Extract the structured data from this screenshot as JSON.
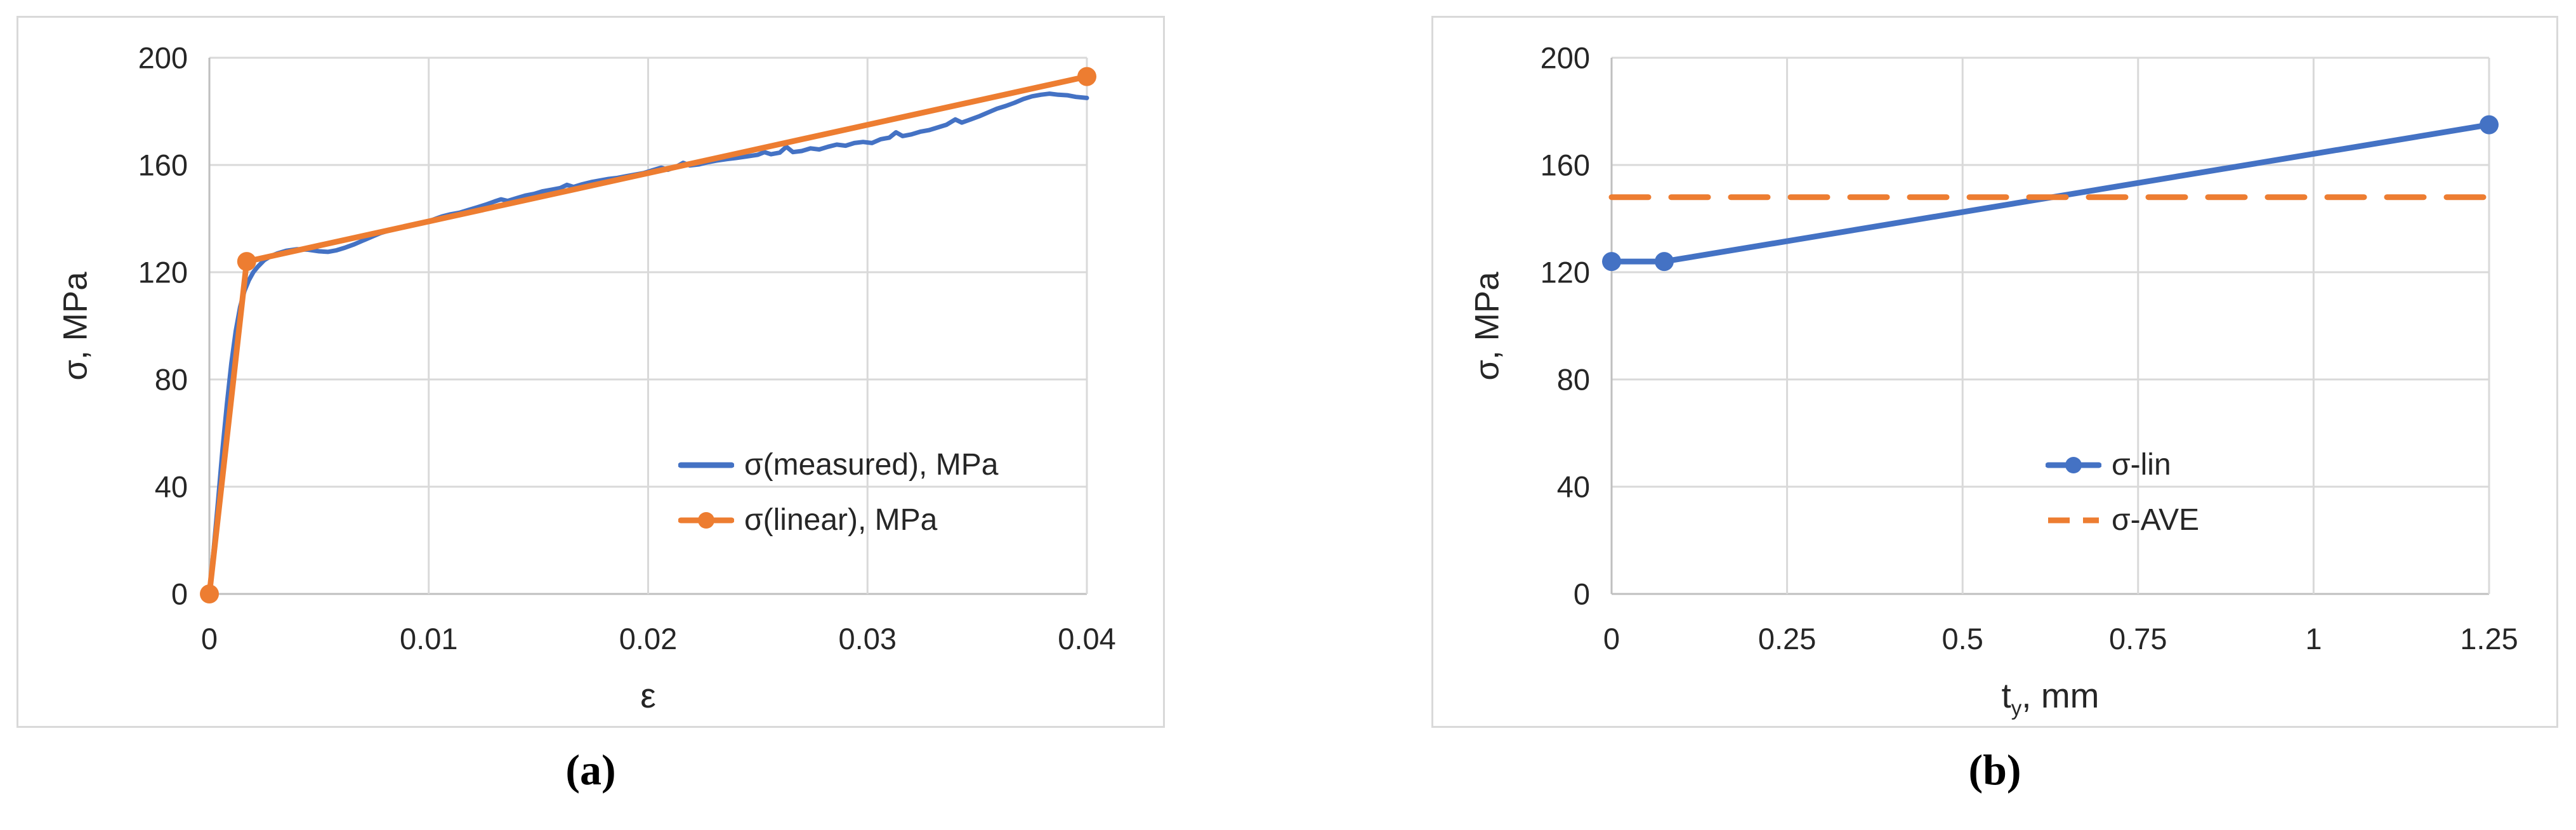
{
  "colors": {
    "blue": "#4472C4",
    "orange": "#ED7D31",
    "gridline": "#D9D9D9",
    "axis_line": "#BFBFBF",
    "chart_border": "#D9D9D9",
    "text": "#262626"
  },
  "chart_data": [
    {
      "type": "line",
      "caption": "(a)",
      "ylabel": "σ, MPa",
      "xlabel_main": "ε",
      "xlabel_sub": "",
      "xlabel_rest": "",
      "xlim": [
        0,
        0.04
      ],
      "ylim": [
        0,
        200
      ],
      "grid": true,
      "legend_position": "inside-lower-right",
      "y_ticks": [
        "200",
        "160",
        "120",
        "80",
        "40",
        "0"
      ],
      "x_ticks": [
        "0",
        "0.01",
        "0.02",
        "0.03",
        "0.04"
      ],
      "legend": [
        {
          "label": "σ(measured), MPa",
          "color_key": "blue",
          "dashed": false,
          "marker": false
        },
        {
          "label": "σ(linear), MPa",
          "color_key": "orange",
          "dashed": false,
          "marker": true
        }
      ],
      "series": [
        {
          "name": "σ(measured), MPa",
          "color_key": "blue",
          "dashed": false,
          "markers": false,
          "weight": 7,
          "points": [
            [
              0,
              0
            ],
            [
              0.0002,
              17
            ],
            [
              0.0004,
              35
            ],
            [
              0.0006,
              54
            ],
            [
              0.0008,
              71
            ],
            [
              0.001,
              86
            ],
            [
              0.0012,
              98
            ],
            [
              0.0014,
              107
            ],
            [
              0.0016,
              113
            ],
            [
              0.0018,
              117
            ],
            [
              0.002,
              120
            ],
            [
              0.0022,
              122
            ],
            [
              0.0025,
              124.5
            ],
            [
              0.0028,
              126
            ],
            [
              0.0031,
              127
            ],
            [
              0.0035,
              128
            ],
            [
              0.004,
              128.6
            ],
            [
              0.0045,
              128.4
            ],
            [
              0.005,
              127.8
            ],
            [
              0.0054,
              127.6
            ],
            [
              0.0058,
              128.2
            ],
            [
              0.0062,
              129.2
            ],
            [
              0.0066,
              130.4
            ],
            [
              0.007,
              131.8
            ],
            [
              0.0074,
              133.2
            ],
            [
              0.0078,
              134.6
            ],
            [
              0.0082,
              135.6
            ],
            [
              0.0086,
              136.4
            ],
            [
              0.009,
              137.2
            ],
            [
              0.0094,
              137.8
            ],
            [
              0.0098,
              138.6
            ],
            [
              0.0102,
              139.6
            ],
            [
              0.0106,
              140.8
            ],
            [
              0.011,
              141.6
            ],
            [
              0.0114,
              142.2
            ],
            [
              0.0118,
              143.2
            ],
            [
              0.0122,
              144.2
            ],
            [
              0.0126,
              145.2
            ],
            [
              0.013,
              146.4
            ],
            [
              0.0133,
              147.2
            ],
            [
              0.0136,
              146.6
            ],
            [
              0.014,
              147.6
            ],
            [
              0.0144,
              148.6
            ],
            [
              0.0148,
              149.2
            ],
            [
              0.0152,
              150.2
            ],
            [
              0.0156,
              150.8
            ],
            [
              0.016,
              151.4
            ],
            [
              0.0163,
              152.6
            ],
            [
              0.0166,
              151.8
            ],
            [
              0.017,
              152.8
            ],
            [
              0.0174,
              153.6
            ],
            [
              0.0178,
              154.2
            ],
            [
              0.0182,
              154.8
            ],
            [
              0.0186,
              155.2
            ],
            [
              0.019,
              155.8
            ],
            [
              0.0194,
              156.4
            ],
            [
              0.0198,
              157
            ],
            [
              0.0202,
              158
            ],
            [
              0.0206,
              159
            ],
            [
              0.0209,
              158.2
            ],
            [
              0.0213,
              159.4
            ],
            [
              0.0216,
              160.8
            ],
            [
              0.0219,
              159.8
            ],
            [
              0.0223,
              160.2
            ],
            [
              0.0227,
              161
            ],
            [
              0.0231,
              161.6
            ],
            [
              0.0236,
              162.2
            ],
            [
              0.024,
              162.6
            ],
            [
              0.0245,
              163.2
            ],
            [
              0.025,
              163.8
            ],
            [
              0.0253,
              164.8
            ],
            [
              0.0256,
              164
            ],
            [
              0.026,
              164.6
            ],
            [
              0.0263,
              166.8
            ],
            [
              0.0266,
              164.8
            ],
            [
              0.027,
              165.2
            ],
            [
              0.0274,
              166.2
            ],
            [
              0.0278,
              165.8
            ],
            [
              0.0282,
              166.8
            ],
            [
              0.0286,
              167.6
            ],
            [
              0.029,
              167.2
            ],
            [
              0.0294,
              168.2
            ],
            [
              0.0298,
              168.6
            ],
            [
              0.0302,
              168.2
            ],
            [
              0.0306,
              169.6
            ],
            [
              0.031,
              170.2
            ],
            [
              0.0313,
              172.2
            ],
            [
              0.0316,
              170.8
            ],
            [
              0.032,
              171.4
            ],
            [
              0.0324,
              172.4
            ],
            [
              0.0328,
              173
            ],
            [
              0.0332,
              174
            ],
            [
              0.0336,
              175
            ],
            [
              0.034,
              177
            ],
            [
              0.0343,
              175.8
            ],
            [
              0.0347,
              177
            ],
            [
              0.0351,
              178.2
            ],
            [
              0.0355,
              179.6
            ],
            [
              0.0359,
              181
            ],
            [
              0.0363,
              182
            ],
            [
              0.0367,
              183.2
            ],
            [
              0.0371,
              184.6
            ],
            [
              0.0375,
              185.6
            ],
            [
              0.0379,
              186.2
            ],
            [
              0.0383,
              186.6
            ],
            [
              0.0387,
              186.2
            ],
            [
              0.0391,
              186
            ],
            [
              0.0395,
              185.4
            ],
            [
              0.04,
              185
            ]
          ]
        },
        {
          "name": "σ(linear), MPa",
          "color_key": "orange",
          "dashed": false,
          "markers": true,
          "weight": 9,
          "points": [
            [
              0,
              0
            ],
            [
              0.0017,
              124
            ],
            [
              0.04,
              193
            ]
          ]
        }
      ]
    },
    {
      "type": "line",
      "caption": "(b)",
      "ylabel": "σ, MPa",
      "xlabel_main": "t",
      "xlabel_sub": "y",
      "xlabel_rest": ", mm",
      "xlim": [
        0,
        1.25
      ],
      "ylim": [
        0,
        200
      ],
      "grid": true,
      "legend_position": "inside-middle-right",
      "y_ticks": [
        "200",
        "160",
        "120",
        "80",
        "40",
        "0"
      ],
      "x_ticks": [
        "0",
        "0.25",
        "0.5",
        "0.75",
        "1",
        "1.25"
      ],
      "legend": [
        {
          "label": "σ-lin",
          "color_key": "blue",
          "dashed": false,
          "marker": true
        },
        {
          "label": "σ-AVE",
          "color_key": "orange",
          "dashed": true,
          "marker": false
        }
      ],
      "series": [
        {
          "name": "σ-lin",
          "color_key": "blue",
          "dashed": false,
          "markers": true,
          "weight": 9,
          "points": [
            [
              0,
              124
            ],
            [
              0.075,
              124
            ],
            [
              1.25,
              175
            ]
          ]
        },
        {
          "name": "σ-AVE",
          "color_key": "orange",
          "dashed": true,
          "markers": false,
          "weight": 9,
          "points": [
            [
              0,
              148
            ],
            [
              1.25,
              148
            ]
          ]
        }
      ]
    }
  ]
}
